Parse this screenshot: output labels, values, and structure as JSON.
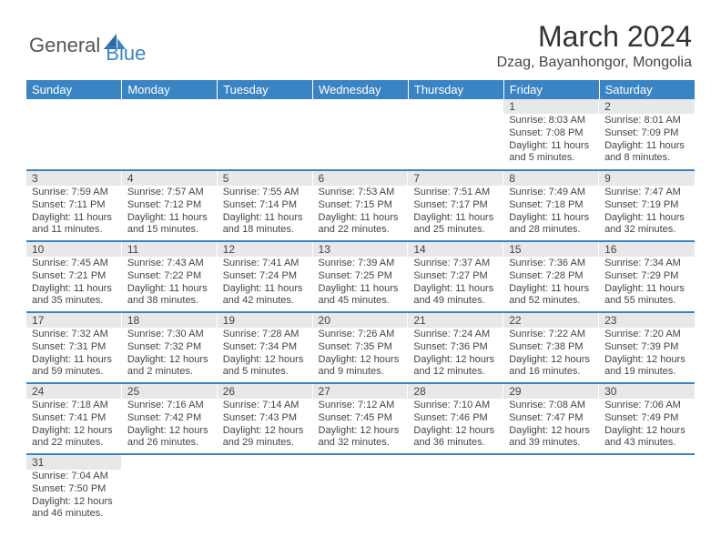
{
  "logo": {
    "main": "General",
    "sub": "Blue"
  },
  "title": "March 2024",
  "location": "Dzag, Bayanhongor, Mongolia",
  "colors": {
    "header_bg": "#3b84c4",
    "daynum_bg": "#e7e8e9",
    "text": "#444444",
    "divider": "#3b84c4",
    "background": "#ffffff"
  },
  "days_of_week": [
    "Sunday",
    "Monday",
    "Tuesday",
    "Wednesday",
    "Thursday",
    "Friday",
    "Saturday"
  ],
  "weeks": [
    [
      {
        "n": "",
        "sr": "",
        "ss": "",
        "dl": ""
      },
      {
        "n": "",
        "sr": "",
        "ss": "",
        "dl": ""
      },
      {
        "n": "",
        "sr": "",
        "ss": "",
        "dl": ""
      },
      {
        "n": "",
        "sr": "",
        "ss": "",
        "dl": ""
      },
      {
        "n": "",
        "sr": "",
        "ss": "",
        "dl": ""
      },
      {
        "n": "1",
        "sr": "Sunrise: 8:03 AM",
        "ss": "Sunset: 7:08 PM",
        "dl": "Daylight: 11 hours and 5 minutes."
      },
      {
        "n": "2",
        "sr": "Sunrise: 8:01 AM",
        "ss": "Sunset: 7:09 PM",
        "dl": "Daylight: 11 hours and 8 minutes."
      }
    ],
    [
      {
        "n": "3",
        "sr": "Sunrise: 7:59 AM",
        "ss": "Sunset: 7:11 PM",
        "dl": "Daylight: 11 hours and 11 minutes."
      },
      {
        "n": "4",
        "sr": "Sunrise: 7:57 AM",
        "ss": "Sunset: 7:12 PM",
        "dl": "Daylight: 11 hours and 15 minutes."
      },
      {
        "n": "5",
        "sr": "Sunrise: 7:55 AM",
        "ss": "Sunset: 7:14 PM",
        "dl": "Daylight: 11 hours and 18 minutes."
      },
      {
        "n": "6",
        "sr": "Sunrise: 7:53 AM",
        "ss": "Sunset: 7:15 PM",
        "dl": "Daylight: 11 hours and 22 minutes."
      },
      {
        "n": "7",
        "sr": "Sunrise: 7:51 AM",
        "ss": "Sunset: 7:17 PM",
        "dl": "Daylight: 11 hours and 25 minutes."
      },
      {
        "n": "8",
        "sr": "Sunrise: 7:49 AM",
        "ss": "Sunset: 7:18 PM",
        "dl": "Daylight: 11 hours and 28 minutes."
      },
      {
        "n": "9",
        "sr": "Sunrise: 7:47 AM",
        "ss": "Sunset: 7:19 PM",
        "dl": "Daylight: 11 hours and 32 minutes."
      }
    ],
    [
      {
        "n": "10",
        "sr": "Sunrise: 7:45 AM",
        "ss": "Sunset: 7:21 PM",
        "dl": "Daylight: 11 hours and 35 minutes."
      },
      {
        "n": "11",
        "sr": "Sunrise: 7:43 AM",
        "ss": "Sunset: 7:22 PM",
        "dl": "Daylight: 11 hours and 38 minutes."
      },
      {
        "n": "12",
        "sr": "Sunrise: 7:41 AM",
        "ss": "Sunset: 7:24 PM",
        "dl": "Daylight: 11 hours and 42 minutes."
      },
      {
        "n": "13",
        "sr": "Sunrise: 7:39 AM",
        "ss": "Sunset: 7:25 PM",
        "dl": "Daylight: 11 hours and 45 minutes."
      },
      {
        "n": "14",
        "sr": "Sunrise: 7:37 AM",
        "ss": "Sunset: 7:27 PM",
        "dl": "Daylight: 11 hours and 49 minutes."
      },
      {
        "n": "15",
        "sr": "Sunrise: 7:36 AM",
        "ss": "Sunset: 7:28 PM",
        "dl": "Daylight: 11 hours and 52 minutes."
      },
      {
        "n": "16",
        "sr": "Sunrise: 7:34 AM",
        "ss": "Sunset: 7:29 PM",
        "dl": "Daylight: 11 hours and 55 minutes."
      }
    ],
    [
      {
        "n": "17",
        "sr": "Sunrise: 7:32 AM",
        "ss": "Sunset: 7:31 PM",
        "dl": "Daylight: 11 hours and 59 minutes."
      },
      {
        "n": "18",
        "sr": "Sunrise: 7:30 AM",
        "ss": "Sunset: 7:32 PM",
        "dl": "Daylight: 12 hours and 2 minutes."
      },
      {
        "n": "19",
        "sr": "Sunrise: 7:28 AM",
        "ss": "Sunset: 7:34 PM",
        "dl": "Daylight: 12 hours and 5 minutes."
      },
      {
        "n": "20",
        "sr": "Sunrise: 7:26 AM",
        "ss": "Sunset: 7:35 PM",
        "dl": "Daylight: 12 hours and 9 minutes."
      },
      {
        "n": "21",
        "sr": "Sunrise: 7:24 AM",
        "ss": "Sunset: 7:36 PM",
        "dl": "Daylight: 12 hours and 12 minutes."
      },
      {
        "n": "22",
        "sr": "Sunrise: 7:22 AM",
        "ss": "Sunset: 7:38 PM",
        "dl": "Daylight: 12 hours and 16 minutes."
      },
      {
        "n": "23",
        "sr": "Sunrise: 7:20 AM",
        "ss": "Sunset: 7:39 PM",
        "dl": "Daylight: 12 hours and 19 minutes."
      }
    ],
    [
      {
        "n": "24",
        "sr": "Sunrise: 7:18 AM",
        "ss": "Sunset: 7:41 PM",
        "dl": "Daylight: 12 hours and 22 minutes."
      },
      {
        "n": "25",
        "sr": "Sunrise: 7:16 AM",
        "ss": "Sunset: 7:42 PM",
        "dl": "Daylight: 12 hours and 26 minutes."
      },
      {
        "n": "26",
        "sr": "Sunrise: 7:14 AM",
        "ss": "Sunset: 7:43 PM",
        "dl": "Daylight: 12 hours and 29 minutes."
      },
      {
        "n": "27",
        "sr": "Sunrise: 7:12 AM",
        "ss": "Sunset: 7:45 PM",
        "dl": "Daylight: 12 hours and 32 minutes."
      },
      {
        "n": "28",
        "sr": "Sunrise: 7:10 AM",
        "ss": "Sunset: 7:46 PM",
        "dl": "Daylight: 12 hours and 36 minutes."
      },
      {
        "n": "29",
        "sr": "Sunrise: 7:08 AM",
        "ss": "Sunset: 7:47 PM",
        "dl": "Daylight: 12 hours and 39 minutes."
      },
      {
        "n": "30",
        "sr": "Sunrise: 7:06 AM",
        "ss": "Sunset: 7:49 PM",
        "dl": "Daylight: 12 hours and 43 minutes."
      }
    ],
    [
      {
        "n": "31",
        "sr": "Sunrise: 7:04 AM",
        "ss": "Sunset: 7:50 PM",
        "dl": "Daylight: 12 hours and 46 minutes."
      },
      {
        "n": "",
        "sr": "",
        "ss": "",
        "dl": ""
      },
      {
        "n": "",
        "sr": "",
        "ss": "",
        "dl": ""
      },
      {
        "n": "",
        "sr": "",
        "ss": "",
        "dl": ""
      },
      {
        "n": "",
        "sr": "",
        "ss": "",
        "dl": ""
      },
      {
        "n": "",
        "sr": "",
        "ss": "",
        "dl": ""
      },
      {
        "n": "",
        "sr": "",
        "ss": "",
        "dl": ""
      }
    ]
  ]
}
